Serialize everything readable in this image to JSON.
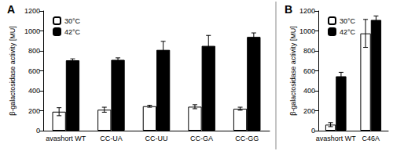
{
  "chart_data": [
    {
      "type": "bar",
      "title": "A",
      "y_label": "β-galactosidase activity [MU]",
      "categories": [
        "avashort WT",
        "CC-UA",
        "CC-UU",
        "CC-GA",
        "CC-GG"
      ],
      "series": [
        {
          "name": "30°C",
          "color": "#ffffff",
          "values": [
            190,
            210,
            245,
            240,
            220
          ],
          "errors": [
            40,
            25,
            10,
            20,
            15
          ]
        },
        {
          "name": "42°C",
          "color": "#000000",
          "values": [
            705,
            710,
            810,
            850,
            940
          ],
          "errors": [
            15,
            20,
            85,
            105,
            40
          ]
        }
      ],
      "ylim": [
        0,
        1200
      ],
      "yticks": [
        0,
        200,
        400,
        600,
        800,
        1000,
        1200
      ],
      "legend": "top-left"
    },
    {
      "type": "bar",
      "title": "B",
      "y_label": "β-galactosidase activity [MU]",
      "categories": [
        "avashort WT",
        "C46A"
      ],
      "series": [
        {
          "name": "30°C",
          "color": "#ffffff",
          "values": [
            60,
            975
          ],
          "errors": [
            20,
            140
          ]
        },
        {
          "name": "42°C",
          "color": "#000000",
          "values": [
            545,
            1110
          ],
          "errors": [
            40,
            40
          ]
        }
      ],
      "ylim": [
        0,
        1200
      ],
      "yticks": [
        0,
        200,
        400,
        600,
        800,
        1000,
        1200
      ],
      "legend": "top-left"
    }
  ]
}
